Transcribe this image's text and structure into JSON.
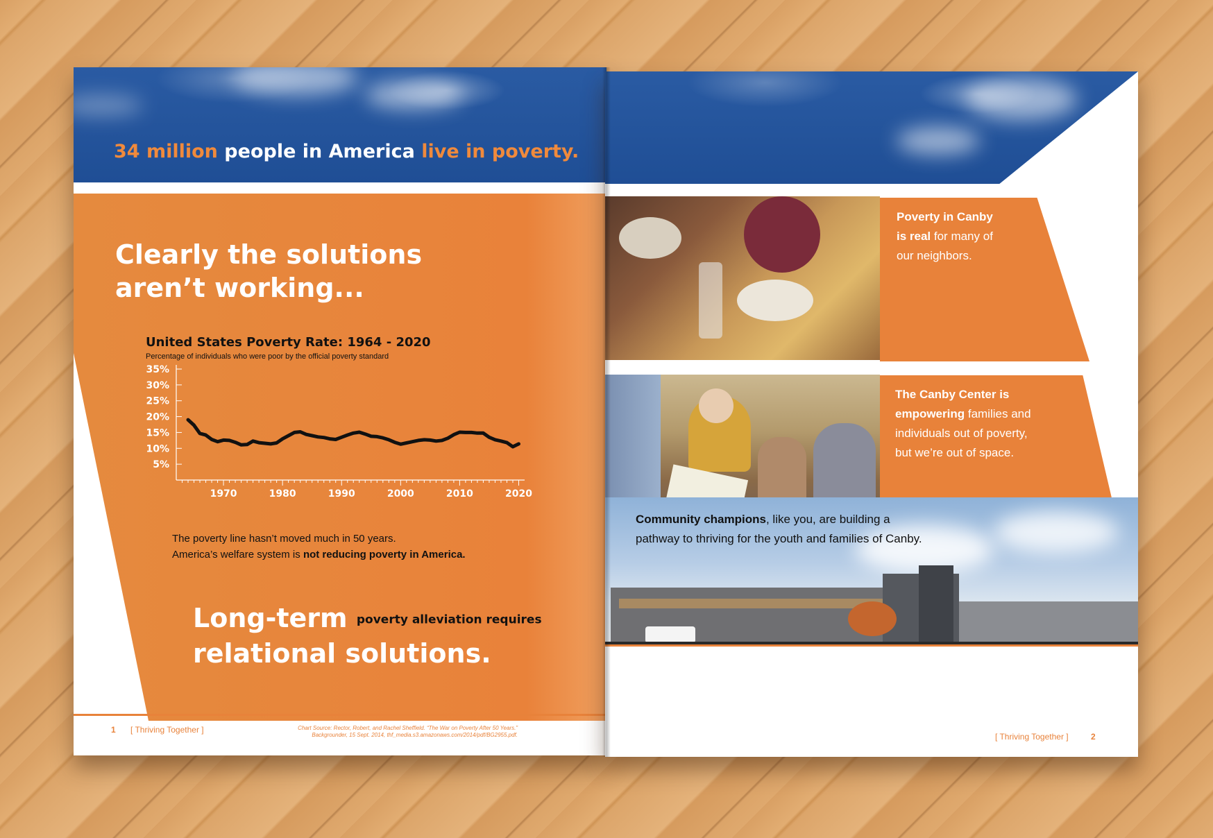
{
  "left_page": {
    "headline": {
      "part1": "34 million",
      "part2": " people in America ",
      "part3": "live in poverty."
    },
    "title_line1": "Clearly the solutions",
    "title_line2": "aren’t working...",
    "chart_title": "United States Poverty Rate: 1964 - 2020",
    "chart_subtitle": "Percentage of individuals who were poor by the official poverty standard",
    "caption_line1": "The poverty line hasn’t moved much in 50 years.",
    "caption_line2_a": "America’s welfare system is ",
    "caption_line2_b": "not reducing poverty in America.",
    "long_term_a": "Long-term ",
    "long_term_b": "poverty alleviation requires",
    "long_term_c": "relational solutions.",
    "page_number": "1",
    "footer_label": "[ Thriving Together ]",
    "source_line1": "Chart Source: Rector, Robert, and Rachel Sheffield. “The War on Poverty After 50 Years.”",
    "source_line2": "Backgrounder, 15 Sept. 2014, thf_media.s3.amazonaws.com/2014/pdf/BG2955.pdf."
  },
  "right_page": {
    "panel1": {
      "a": "Poverty in Canby",
      "b": "is real",
      "c": " for many of",
      "d": "our neighbors."
    },
    "panel2": {
      "a": "The Canby Center is",
      "b": "empowering",
      "c": " families and",
      "d": "individuals out of poverty,",
      "e": "but we’re out of space."
    },
    "community": {
      "a": "Community champions",
      "b": ", like you, are building a",
      "c": "pathway to thriving for the youth and families of Canby."
    },
    "footer_label": "[ Thriving Together ]",
    "page_number": "2"
  },
  "chart_data": {
    "type": "line",
    "title": "United States Poverty Rate: 1964 - 2020",
    "subtitle": "Percentage of individuals who were poor by the official poverty standard",
    "x_ticks": [
      "1970",
      "1980",
      "1990",
      "2000",
      "2010",
      "2020"
    ],
    "y_ticks": [
      "35%",
      "30%",
      "25%",
      "20%",
      "15%",
      "10%",
      "5%"
    ],
    "xlim": [
      1962,
      2021
    ],
    "ylim": [
      0,
      35
    ],
    "x": [
      1964,
      1965,
      1966,
      1967,
      1968,
      1969,
      1970,
      1971,
      1972,
      1973,
      1974,
      1975,
      1976,
      1977,
      1978,
      1979,
      1980,
      1981,
      1982,
      1983,
      1984,
      1985,
      1986,
      1987,
      1988,
      1989,
      1990,
      1991,
      1992,
      1993,
      1994,
      1995,
      1996,
      1997,
      1998,
      1999,
      2000,
      2001,
      2002,
      2003,
      2004,
      2005,
      2006,
      2007,
      2008,
      2009,
      2010,
      2011,
      2012,
      2013,
      2014,
      2015,
      2016,
      2017,
      2018,
      2019,
      2020
    ],
    "y": [
      19.0,
      17.3,
      14.7,
      14.2,
      12.8,
      12.1,
      12.6,
      12.5,
      11.9,
      11.1,
      11.2,
      12.3,
      11.8,
      11.6,
      11.4,
      11.7,
      13.0,
      14.0,
      15.0,
      15.2,
      14.4,
      14.0,
      13.6,
      13.4,
      13.0,
      12.8,
      13.5,
      14.2,
      14.8,
      15.1,
      14.5,
      13.8,
      13.7,
      13.3,
      12.7,
      11.9,
      11.3,
      11.7,
      12.1,
      12.5,
      12.7,
      12.6,
      12.3,
      12.5,
      13.2,
      14.3,
      15.1,
      15.0,
      15.0,
      14.8,
      14.8,
      13.5,
      12.7,
      12.3,
      11.8,
      10.5,
      11.4
    ],
    "grid": false,
    "legend": "none"
  }
}
